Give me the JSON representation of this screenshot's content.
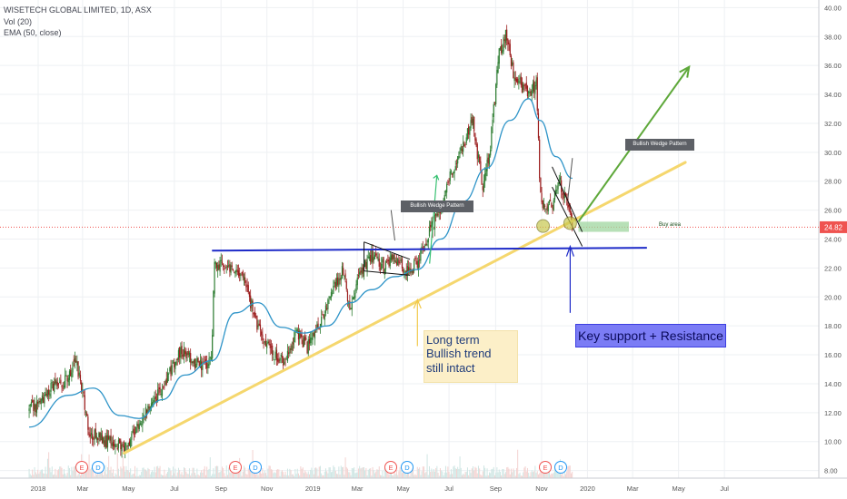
{
  "header": {
    "symbol": "WISETECH GLOBAL LIMITED, 1D, ASX",
    "indicator_vol": "Vol (20)",
    "indicator_ema": "EMA (50, close)"
  },
  "colors": {
    "up": "#26a69a",
    "down": "#ef5350",
    "candle_body": "#2e7d32",
    "candle_down": "#9b1c1c",
    "ema": "#2e94c8",
    "trendline": "#f5d76e",
    "support": "#1e2bc8",
    "arrow": "#5ea83a",
    "price_label": "#ef5350",
    "callout_blue": "#7b7cf5",
    "callout_yellow": "#fcefc8"
  },
  "annotations": {
    "long_term": "Long term\nBullish trend\nstill intact",
    "key_support": "Key support + Resistance",
    "wedge_1": "Bullish Wedge Pattern",
    "wedge_2": "Bullish Wedge Pattern",
    "buy_area": "Buy area",
    "current_price": "24.82"
  },
  "events": [
    {
      "label": "E",
      "x": "Feb 2018"
    },
    {
      "label": "D",
      "x": "Feb 2018"
    },
    {
      "label": "E",
      "x": "Aug 2018"
    },
    {
      "label": "D",
      "x": "Aug 2018"
    },
    {
      "label": "E",
      "x": "Feb 2019"
    },
    {
      "label": "D",
      "x": "Feb 2019"
    },
    {
      "label": "E",
      "x": "Aug 2019"
    },
    {
      "label": "D",
      "x": "Aug 2019"
    }
  ],
  "chart_data": {
    "type": "candlestick",
    "title": "WISETECH GLOBAL LIMITED, 1D, ASX",
    "x_tick_labels": [
      "2018",
      "Mar",
      "May",
      "Jul",
      "Sep",
      "Nov",
      "2019",
      "Mar",
      "May",
      "Jul",
      "Sep",
      "Nov",
      "2020",
      "Mar",
      "May",
      "Jul"
    ],
    "y_tick_labels": [
      "8.00",
      "10.00",
      "12.00",
      "14.00",
      "16.00",
      "18.00",
      "20.00",
      "22.00",
      "24.00",
      "26.00",
      "28.00",
      "30.00",
      "32.00",
      "34.00",
      "36.00",
      "38.00",
      "40.00"
    ],
    "ylim": [
      7.6,
      40.4
    ],
    "last_price": 24.82,
    "price_path": [
      {
        "x": "2017-12-20",
        "close": 12.2
      },
      {
        "x": "2018-01-05",
        "close": 12.7
      },
      {
        "x": "2018-01-20",
        "close": 13.8
      },
      {
        "x": "2018-02-05",
        "close": 14.2
      },
      {
        "x": "2018-02-20",
        "close": 15.5
      },
      {
        "x": "2018-03-01",
        "close": 13.6
      },
      {
        "x": "2018-03-10",
        "close": 10.6
      },
      {
        "x": "2018-03-25",
        "close": 10.2
      },
      {
        "x": "2018-04-10",
        "close": 9.9
      },
      {
        "x": "2018-04-25",
        "close": 9.6
      },
      {
        "x": "2018-05-10",
        "close": 10.8
      },
      {
        "x": "2018-05-25",
        "close": 12.2
      },
      {
        "x": "2018-06-10",
        "close": 13.3
      },
      {
        "x": "2018-06-25",
        "close": 14.8
      },
      {
        "x": "2018-07-10",
        "close": 16.4
      },
      {
        "x": "2018-07-25",
        "close": 15.5
      },
      {
        "x": "2018-08-10",
        "close": 15.2
      },
      {
        "x": "2018-08-20",
        "close": 15.9
      },
      {
        "x": "2018-08-23",
        "close": 22.4
      },
      {
        "x": "2018-09-05",
        "close": 22.3
      },
      {
        "x": "2018-09-25",
        "close": 21.9
      },
      {
        "x": "2018-10-10",
        "close": 19.7
      },
      {
        "x": "2018-10-25",
        "close": 17.1
      },
      {
        "x": "2018-11-10",
        "close": 16.0
      },
      {
        "x": "2018-11-25",
        "close": 15.6
      },
      {
        "x": "2018-12-10",
        "close": 17.6
      },
      {
        "x": "2018-12-25",
        "close": 16.5
      },
      {
        "x": "2019-01-10",
        "close": 18.1
      },
      {
        "x": "2019-01-25",
        "close": 20.1
      },
      {
        "x": "2019-02-10",
        "close": 21.8
      },
      {
        "x": "2019-02-20",
        "close": 19.1
      },
      {
        "x": "2019-03-05",
        "close": 21.7
      },
      {
        "x": "2019-03-20",
        "close": 22.9
      },
      {
        "x": "2019-04-05",
        "close": 22.1
      },
      {
        "x": "2019-04-20",
        "close": 22.6
      },
      {
        "x": "2019-05-05",
        "close": 21.7
      },
      {
        "x": "2019-05-20",
        "close": 22.3
      },
      {
        "x": "2019-06-05",
        "close": 24.4
      },
      {
        "x": "2019-06-20",
        "close": 26.3
      },
      {
        "x": "2019-07-05",
        "close": 28.7
      },
      {
        "x": "2019-07-20",
        "close": 30.4
      },
      {
        "x": "2019-08-01",
        "close": 32.3
      },
      {
        "x": "2019-08-15",
        "close": 27.4
      },
      {
        "x": "2019-08-25",
        "close": 30.5
      },
      {
        "x": "2019-09-05",
        "close": 36.8
      },
      {
        "x": "2019-09-15",
        "close": 38.2
      },
      {
        "x": "2019-09-25",
        "close": 35.2
      },
      {
        "x": "2019-10-05",
        "close": 34.6
      },
      {
        "x": "2019-10-15",
        "close": 33.9
      },
      {
        "x": "2019-10-25",
        "close": 34.8
      },
      {
        "x": "2019-10-30",
        "close": 27.3
      },
      {
        "x": "2019-11-05",
        "close": 25.8
      },
      {
        "x": "2019-11-15",
        "close": 26.4
      },
      {
        "x": "2019-11-25",
        "close": 28.0
      },
      {
        "x": "2019-12-05",
        "close": 26.4
      },
      {
        "x": "2019-12-12",
        "close": 24.82
      }
    ],
    "series": [
      {
        "name": "EMA (50, close)",
        "values": [
          {
            "x": "2017-12-20",
            "y": 11.0
          },
          {
            "x": "2018-02-10",
            "y": 13.2
          },
          {
            "x": "2018-03-15",
            "y": 13.7
          },
          {
            "x": "2018-04-20",
            "y": 11.8
          },
          {
            "x": "2018-05-15",
            "y": 11.6
          },
          {
            "x": "2018-06-15",
            "y": 12.9
          },
          {
            "x": "2018-07-15",
            "y": 14.6
          },
          {
            "x": "2018-08-20",
            "y": 15.6
          },
          {
            "x": "2018-09-20",
            "y": 18.9
          },
          {
            "x": "2018-10-20",
            "y": 19.6
          },
          {
            "x": "2018-11-20",
            "y": 17.9
          },
          {
            "x": "2018-12-20",
            "y": 17.5
          },
          {
            "x": "2019-01-20",
            "y": 18.0
          },
          {
            "x": "2019-02-20",
            "y": 19.6
          },
          {
            "x": "2019-03-20",
            "y": 20.5
          },
          {
            "x": "2019-04-20",
            "y": 21.4
          },
          {
            "x": "2019-05-20",
            "y": 21.9
          },
          {
            "x": "2019-06-20",
            "y": 24.0
          },
          {
            "x": "2019-07-20",
            "y": 26.6
          },
          {
            "x": "2019-08-20",
            "y": 28.9
          },
          {
            "x": "2019-09-20",
            "y": 32.2
          },
          {
            "x": "2019-10-15",
            "y": 33.7
          },
          {
            "x": "2019-10-30",
            "y": 32.2
          },
          {
            "x": "2019-11-20",
            "y": 29.7
          },
          {
            "x": "2019-12-12",
            "y": 28.2
          }
        ]
      }
    ],
    "drawings": {
      "trendline": {
        "from": {
          "x": "2018-04-25",
          "y": 9.2
        },
        "to": {
          "x": "2020-05-10",
          "y": 29.3
        }
      },
      "support_line": {
        "from": {
          "x": "2018-08-20",
          "y": 23.2
        },
        "to": {
          "x": "2020-03-20",
          "y": 23.4
        }
      },
      "green_arrow": {
        "from": {
          "x": "2019-12-20",
          "y": 25.2
        },
        "to": {
          "x": "2020-05-15",
          "y": 35.9
        }
      },
      "buy_area": {
        "x": [
          "2019-12-20",
          "2020-02-25"
        ],
        "y": [
          24.5,
          25.2
        ]
      },
      "wedge_1": {
        "x": [
          "2019-03-10",
          "2019-05-10"
        ],
        "y": [
          21.5,
          23.8
        ]
      },
      "wedge_2": {
        "x": [
          "2019-11-15",
          "2019-12-25"
        ],
        "y": [
          23.5,
          29.0
        ]
      }
    }
  }
}
